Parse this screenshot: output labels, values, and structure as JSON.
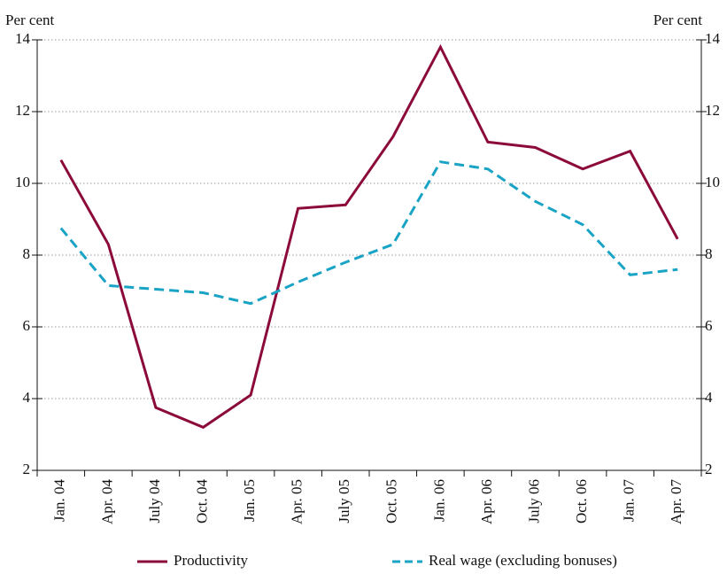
{
  "chart_data": {
    "type": "line",
    "y_label": "Per cent",
    "y2_label": "Per cent",
    "categories": [
      "Jan. 04",
      "Apr. 04",
      "July 04",
      "Oct. 04",
      "Jan. 05",
      "Apr. 05",
      "July 05",
      "Oct. 05",
      "Jan. 06",
      "Apr. 06",
      "July 06",
      "Oct. 06",
      "Jan. 07",
      "Apr. 07"
    ],
    "series": [
      {
        "name": "Productivity",
        "color": "#8b0a3a",
        "dashed": false,
        "values": [
          10.65,
          8.3,
          3.75,
          3.2,
          4.1,
          9.3,
          9.4,
          11.3,
          13.8,
          11.15,
          11.0,
          10.4,
          10.9,
          8.45
        ]
      },
      {
        "name": "Real wage (excluding bonuses)",
        "color": "#19a3c4",
        "dashed": true,
        "values": [
          8.75,
          7.15,
          7.05,
          6.95,
          6.65,
          7.25,
          7.8,
          8.3,
          10.6,
          10.4,
          9.5,
          8.85,
          7.45,
          7.6
        ]
      }
    ],
    "ylim": [
      2,
      14
    ],
    "yticks": [
      2,
      4,
      6,
      8,
      10,
      12,
      14
    ],
    "y2lim": [
      2,
      14
    ],
    "y2ticks": [
      2,
      4,
      6,
      8,
      10,
      12,
      14
    ],
    "grid": true
  }
}
